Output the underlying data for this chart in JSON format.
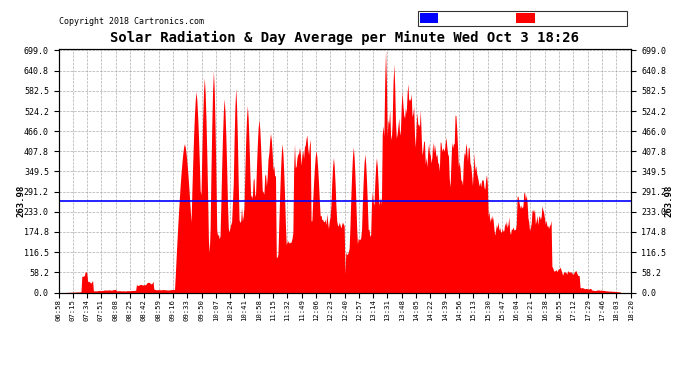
{
  "title": "Solar Radiation & Day Average per Minute Wed Oct 3 18:26",
  "copyright": "Copyright 2018 Cartronics.com",
  "median_value": 263.98,
  "y_min": 0.0,
  "y_max": 699.0,
  "y_ticks": [
    0.0,
    58.2,
    116.5,
    174.8,
    233.0,
    291.2,
    349.5,
    407.8,
    466.0,
    524.2,
    582.5,
    640.8,
    699.0
  ],
  "fill_color": "#FF0000",
  "median_line_color": "#0000FF",
  "background_color": "#FFFFFF",
  "plot_bg_color": "#FFFFFF",
  "grid_color": "#999999",
  "legend_median_bg": "#0000FF",
  "legend_radiation_bg": "#FF0000",
  "x_tick_labels": [
    "06:58",
    "07:15",
    "07:34",
    "07:51",
    "08:08",
    "08:25",
    "08:42",
    "08:59",
    "09:16",
    "09:33",
    "09:50",
    "10:07",
    "10:24",
    "10:41",
    "10:58",
    "11:15",
    "11:32",
    "11:49",
    "12:06",
    "12:23",
    "12:40",
    "12:57",
    "13:14",
    "13:31",
    "13:48",
    "14:05",
    "14:22",
    "14:39",
    "14:56",
    "15:13",
    "15:30",
    "15:47",
    "16:04",
    "16:21",
    "16:38",
    "16:55",
    "17:12",
    "17:29",
    "17:46",
    "18:03",
    "18:20"
  ],
  "num_points": 693
}
